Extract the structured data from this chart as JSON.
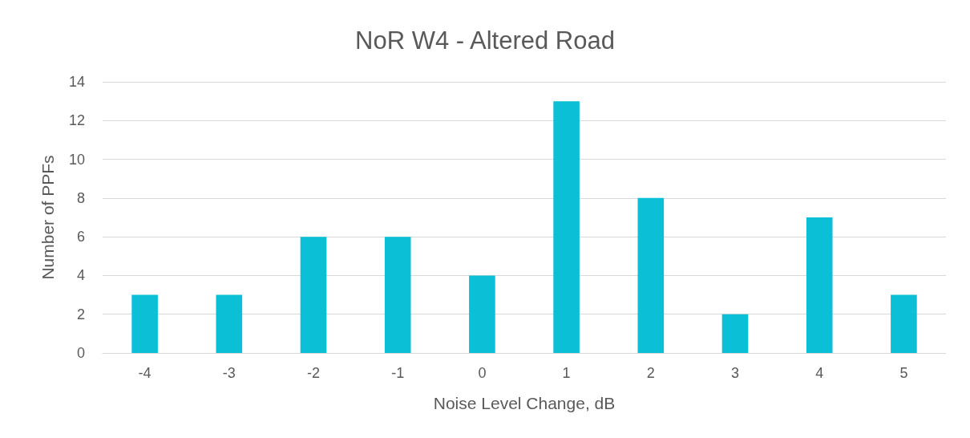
{
  "chart_data": {
    "type": "bar",
    "title": "NoR W4 - Altered Road",
    "xlabel": "Noise Level Change, dB",
    "ylabel": "Number of PPFs",
    "categories": [
      "-4",
      "-3",
      "-2",
      "-1",
      "0",
      "1",
      "2",
      "3",
      "4",
      "5"
    ],
    "values": [
      3,
      3,
      6,
      6,
      4,
      13,
      8,
      2,
      7,
      3
    ],
    "color": "#0bbfd6",
    "ylim": [
      0,
      14
    ],
    "yticks": [
      0,
      2,
      4,
      6,
      8,
      10,
      12,
      14
    ],
    "grid": "y"
  }
}
